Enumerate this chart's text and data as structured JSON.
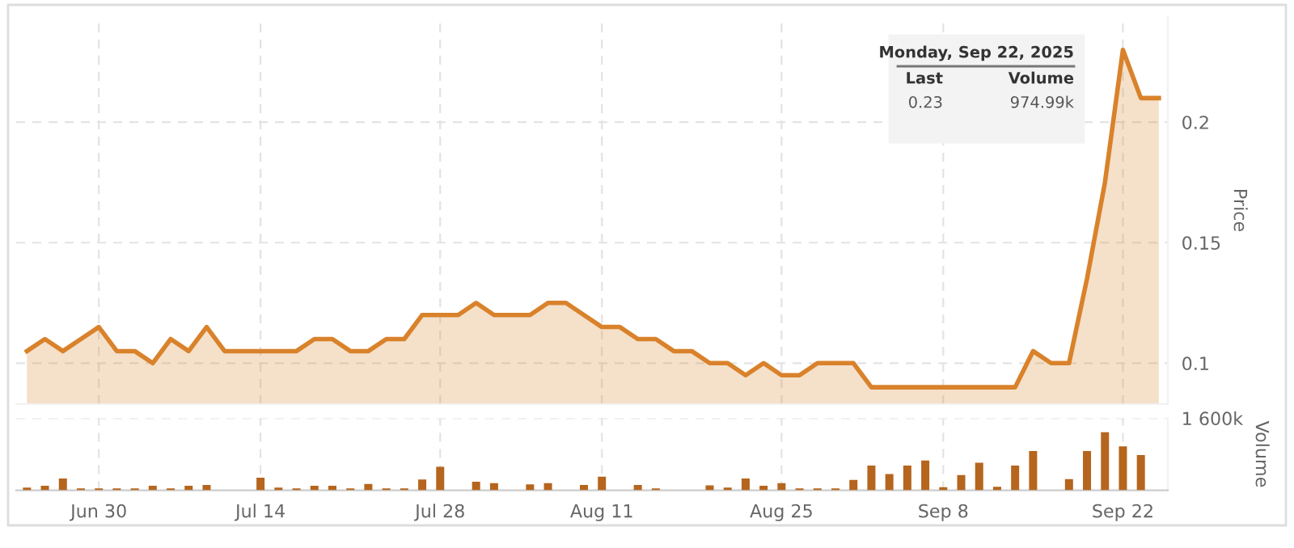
{
  "chart_data": [
    {
      "type": "area",
      "ylabel": "Price",
      "categories": [
        null,
        null,
        null,
        null,
        null,
        null,
        null,
        null,
        null,
        null,
        null,
        null,
        null,
        null,
        null,
        null,
        null,
        null,
        null,
        null,
        null,
        null,
        null,
        null,
        null,
        null,
        null,
        null,
        null,
        null,
        null,
        null,
        null,
        null,
        null,
        null,
        null,
        null,
        null,
        null,
        null,
        null,
        null,
        null,
        null,
        null,
        null,
        null,
        null,
        null,
        null,
        null,
        null,
        null,
        null,
        null,
        null,
        null,
        null,
        null,
        null,
        null,
        null,
        null
      ],
      "series": [
        {
          "color": "#d9822b",
          "values": [
            0.105,
            0.11,
            0.105,
            0.11,
            0.115,
            0.105,
            0.105,
            0.1,
            0.11,
            0.105,
            0.115,
            0.105,
            0.105,
            0.105,
            0.105,
            0.105,
            0.11,
            0.11,
            0.105,
            0.105,
            0.11,
            0.11,
            0.12,
            0.12,
            0.12,
            0.125,
            0.12,
            0.12,
            0.12,
            0.125,
            0.125,
            0.12,
            0.115,
            0.115,
            0.11,
            0.11,
            0.105,
            0.105,
            0.1,
            0.1,
            0.095,
            0.1,
            0.095,
            0.095,
            0.1,
            0.1,
            0.1,
            0.09,
            0.09,
            0.09,
            0.09,
            0.09,
            0.09,
            0.09,
            0.09,
            0.09,
            0.105,
            0.1,
            0.1,
            0.135,
            0.175,
            0.23,
            0.21,
            0.21
          ]
        }
      ],
      "ylim": [
        0.083,
        0.244
      ],
      "yticks": [
        0.1,
        0.15,
        0.2
      ],
      "grid": true,
      "tick_labels": "y",
      "legend": false,
      "marker": "none",
      "line_style": "solid",
      "annotations": [
        "Monday, Sep 22, 2025",
        "Last",
        "Volume",
        "0.23",
        "974.99k"
      ]
    },
    {
      "type": "bar",
      "ylabel": "Volume",
      "categories": [
        null,
        null,
        null,
        null,
        "Jun 30",
        null,
        null,
        null,
        null,
        null,
        null,
        null,
        null,
        "Jul 14",
        null,
        null,
        null,
        null,
        null,
        null,
        null,
        null,
        null,
        "Jul 28",
        null,
        null,
        null,
        null,
        null,
        null,
        null,
        null,
        "Aug 11",
        null,
        null,
        null,
        null,
        null,
        null,
        null,
        null,
        null,
        "Aug 25",
        null,
        null,
        null,
        null,
        null,
        null,
        null,
        null,
        "Sep 8",
        null,
        null,
        null,
        null,
        null,
        null,
        null,
        null,
        null,
        "Sep 22",
        null,
        null
      ],
      "series": [
        {
          "color": "#b5651d",
          "values": [
            60,
            100,
            260,
            40,
            40,
            40,
            40,
            100,
            40,
            100,
            120,
            0,
            0,
            280,
            60,
            40,
            100,
            100,
            40,
            140,
            40,
            40,
            240,
            520,
            0,
            190,
            160,
            0,
            130,
            160,
            0,
            120,
            300,
            0,
            120,
            40,
            0,
            0,
            110,
            60,
            260,
            100,
            160,
            40,
            40,
            40,
            230,
            550,
            360,
            550,
            660,
            70,
            340,
            610,
            80,
            550,
            870,
            0,
            250,
            870,
            1290,
            974.99,
            780,
            0
          ]
        }
      ],
      "ylim": [
        0,
        1600
      ],
      "yticks": [
        {
          "value": 1600,
          "label": "1 600k"
        }
      ],
      "grid": true,
      "legend": false
    }
  ]
}
